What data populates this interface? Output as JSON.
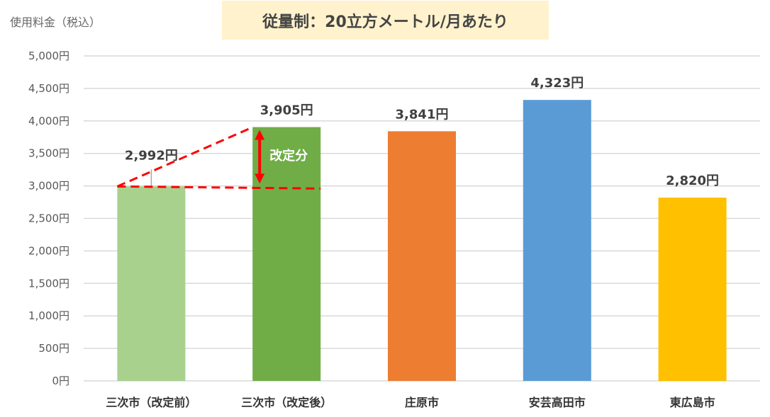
{
  "chart_data": {
    "type": "bar",
    "title": "従量制：20立方メートル/月あたり",
    "ylabel": "使用料金（税込）",
    "xlabel": "",
    "ylim": [
      0,
      5000
    ],
    "yticks": [
      0,
      500,
      1000,
      1500,
      2000,
      2500,
      3000,
      3500,
      4000,
      4500,
      5000
    ],
    "ytick_labels": [
      "0円",
      "500円",
      "1,000円",
      "1,500円",
      "2,000円",
      "2,500円",
      "3,000円",
      "3,500円",
      "4,000円",
      "4,500円",
      "5,000円"
    ],
    "grid": true,
    "categories": [
      "三次市（改定前）",
      "三次市（改定後）",
      "庄原市",
      "安芸高田市",
      "東広島市"
    ],
    "values": [
      2992,
      3905,
      3841,
      4323,
      2820
    ],
    "data_labels": [
      "2,992円",
      "3,905円",
      "3,841円",
      "4,323円",
      "2,820円"
    ],
    "colors": [
      "#a9d18e",
      "#70ad47",
      "#ed7d31",
      "#5b9bd5",
      "#ffc000"
    ],
    "annotation": {
      "text": "改定分",
      "color": "#ff0000"
    }
  }
}
